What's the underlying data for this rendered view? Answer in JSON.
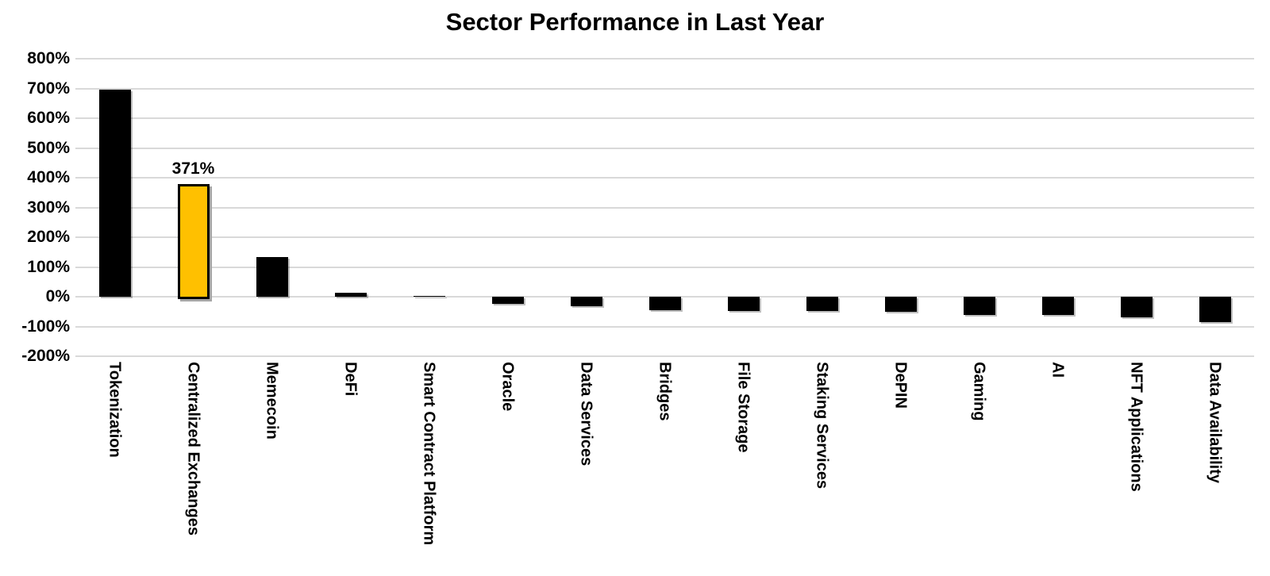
{
  "title": "Sector Performance in Last Year",
  "chart_data": {
    "type": "bar",
    "title": "Sector Performance in Last Year",
    "xlabel": "",
    "ylabel": "",
    "categories": [
      "Tokenization",
      "Centralized Exchanges",
      "Memecoin",
      "DeFi",
      "Smart Contract Platform",
      "Oracle",
      "Data Services",
      "Bridges",
      "File Storage",
      "Staking Services",
      "DePIN",
      "Gaming",
      "AI",
      "NFT Applications",
      "Data Availability"
    ],
    "values": [
      695,
      371,
      133,
      13,
      4,
      -25,
      -33,
      -46,
      -48,
      -49,
      -51,
      -60,
      -61,
      -69,
      -85
    ],
    "unit": "%",
    "ylim": [
      -200,
      800
    ],
    "yticks": [
      800,
      700,
      600,
      500,
      400,
      300,
      200,
      100,
      0,
      -100,
      -200
    ],
    "ytick_labels": [
      "800%",
      "700%",
      "600%",
      "500%",
      "400%",
      "300%",
      "200%",
      "100%",
      "0%",
      "-100%",
      "-200%"
    ],
    "grid": "horizontal",
    "legend_position": "none",
    "highlight": {
      "category": "Centralized Exchanges",
      "label": "371%",
      "fill": "#ffc000",
      "border": "#000000"
    },
    "colors": {
      "bar": "#000000",
      "highlight_fill": "#ffc000",
      "gridline": "#d9d9d9",
      "text": "#000000",
      "background": "#ffffff"
    }
  }
}
